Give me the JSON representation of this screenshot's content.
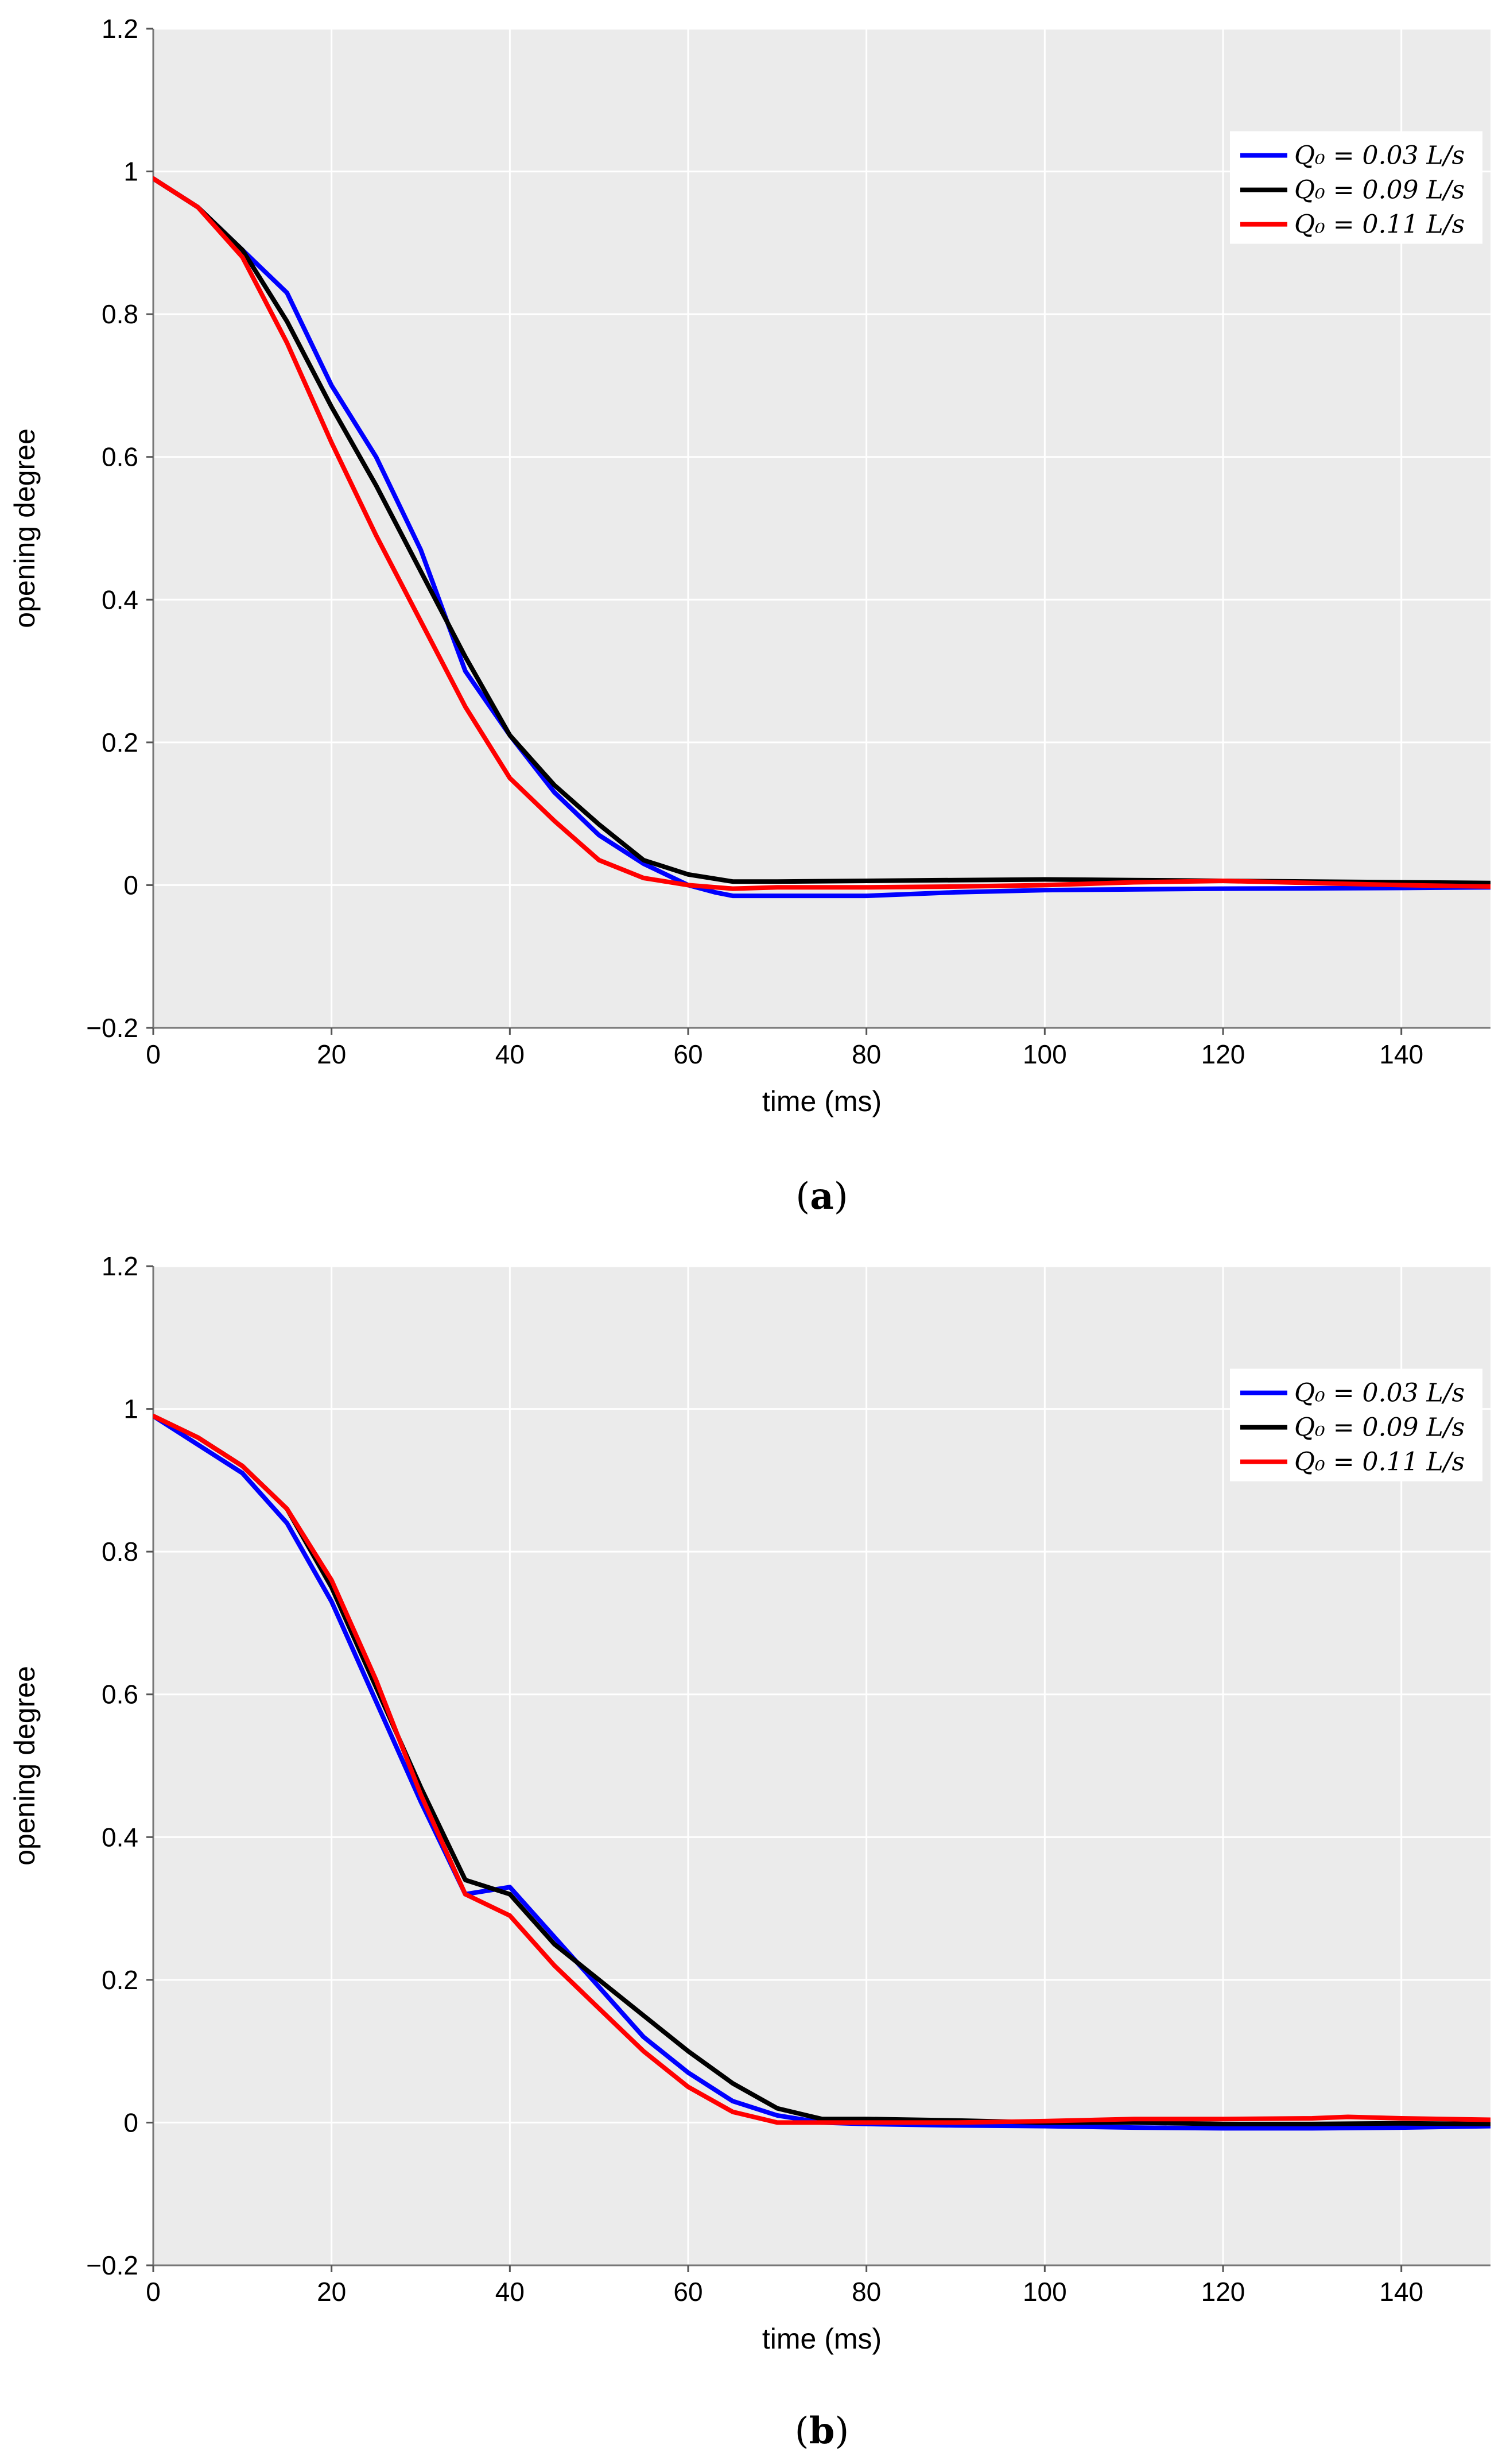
{
  "chart_data": [
    {
      "type": "line",
      "panel_label": "a",
      "title": "",
      "xlabel": "time (ms)",
      "ylabel": "opening degree",
      "xlim": [
        0,
        150
      ],
      "ylim": [
        -0.2,
        1.2
      ],
      "xticks": [
        0,
        20,
        40,
        60,
        80,
        100,
        120,
        140
      ],
      "yticks": [
        -0.2,
        0,
        0.2,
        0.4,
        0.6,
        0.8,
        1,
        1.2
      ],
      "xtick_labels": [
        "0",
        "20",
        "40",
        "60",
        "80",
        "100",
        "120",
        "140"
      ],
      "ytick_labels": [
        "−0.2",
        "0",
        "0.2",
        "0.4",
        "0.6",
        "0.8",
        "1",
        "1.2"
      ],
      "grid": true,
      "legend_position": "top-right",
      "series": [
        {
          "name": "Q0 = 0.03 L/s",
          "legend_label": "Q₀ = 0.03 L/s",
          "color": "#0000ff",
          "x": [
            0,
            5,
            10,
            15,
            20,
            25,
            30,
            35,
            40,
            45,
            50,
            55,
            60,
            63,
            65,
            70,
            80,
            90,
            100,
            120,
            140,
            150
          ],
          "y": [
            0.99,
            0.95,
            0.89,
            0.83,
            0.7,
            0.6,
            0.47,
            0.3,
            0.21,
            0.13,
            0.07,
            0.03,
            0.0,
            -0.01,
            -0.015,
            -0.015,
            -0.015,
            -0.01,
            -0.007,
            -0.005,
            -0.004,
            -0.003
          ]
        },
        {
          "name": "Q0 = 0.09 L/s",
          "legend_label": "Q₀ = 0.09 L/s",
          "color": "#000000",
          "x": [
            0,
            5,
            10,
            15,
            20,
            25,
            30,
            35,
            40,
            45,
            50,
            55,
            60,
            65,
            70,
            80,
            90,
            100,
            110,
            120,
            140,
            150
          ],
          "y": [
            0.99,
            0.95,
            0.89,
            0.79,
            0.67,
            0.56,
            0.44,
            0.32,
            0.21,
            0.14,
            0.085,
            0.035,
            0.015,
            0.005,
            0.005,
            0.006,
            0.007,
            0.008,
            0.007,
            0.006,
            0.004,
            0.003
          ]
        },
        {
          "name": "Q0 = 0.11 L/s",
          "legend_label": "Q₀ = 0.11 L/s",
          "color": "#ff0000",
          "x": [
            0,
            5,
            10,
            15,
            20,
            25,
            30,
            35,
            40,
            45,
            50,
            55,
            60,
            65,
            70,
            80,
            90,
            100,
            110,
            120,
            140,
            150
          ],
          "y": [
            0.99,
            0.95,
            0.88,
            0.76,
            0.62,
            0.49,
            0.37,
            0.25,
            0.15,
            0.09,
            0.035,
            0.01,
            0.0,
            -0.005,
            -0.003,
            -0.003,
            -0.002,
            0.0,
            0.004,
            0.006,
            0.0,
            -0.002
          ]
        }
      ]
    },
    {
      "type": "line",
      "panel_label": "b",
      "title": "",
      "xlabel": "time (ms)",
      "ylabel": "opening degree",
      "xlim": [
        0,
        150
      ],
      "ylim": [
        -0.2,
        1.2
      ],
      "xticks": [
        0,
        20,
        40,
        60,
        80,
        100,
        120,
        140
      ],
      "yticks": [
        -0.2,
        0,
        0.2,
        0.4,
        0.6,
        0.8,
        1,
        1.2
      ],
      "xtick_labels": [
        "0",
        "20",
        "40",
        "60",
        "80",
        "100",
        "120",
        "140"
      ],
      "ytick_labels": [
        "−0.2",
        "0",
        "0.2",
        "0.4",
        "0.6",
        "0.8",
        "1",
        "1.2"
      ],
      "grid": true,
      "legend_position": "top-right",
      "series": [
        {
          "name": "Q0 = 0.03 L/s",
          "legend_label": "Q₀ = 0.03 L/s",
          "color": "#0000ff",
          "x": [
            0,
            5,
            10,
            15,
            20,
            25,
            30,
            35,
            40,
            45,
            50,
            55,
            60,
            65,
            70,
            75,
            80,
            90,
            100,
            110,
            120,
            130,
            140,
            150
          ],
          "y": [
            0.99,
            0.95,
            0.91,
            0.84,
            0.73,
            0.59,
            0.45,
            0.32,
            0.33,
            0.26,
            0.19,
            0.12,
            0.07,
            0.03,
            0.01,
            0.0,
            -0.002,
            -0.004,
            -0.005,
            -0.007,
            -0.008,
            -0.008,
            -0.007,
            -0.005
          ]
        },
        {
          "name": "Q0 = 0.09 L/s",
          "legend_label": "Q₀ = 0.09 L/s",
          "color": "#000000",
          "x": [
            0,
            5,
            10,
            15,
            20,
            25,
            30,
            35,
            40,
            45,
            50,
            55,
            60,
            65,
            70,
            75,
            80,
            90,
            100,
            110,
            120,
            130,
            140,
            150
          ],
          "y": [
            0.99,
            0.96,
            0.92,
            0.86,
            0.75,
            0.61,
            0.47,
            0.34,
            0.32,
            0.25,
            0.2,
            0.15,
            0.1,
            0.055,
            0.02,
            0.005,
            0.005,
            0.003,
            0.0,
            0.0,
            -0.002,
            -0.002,
            -0.001,
            -0.002
          ]
        },
        {
          "name": "Q0 = 0.11 L/s",
          "legend_label": "Q₀ = 0.11 L/s",
          "color": "#ff0000",
          "x": [
            0,
            5,
            10,
            15,
            20,
            25,
            30,
            35,
            40,
            45,
            50,
            55,
            60,
            65,
            70,
            75,
            80,
            90,
            100,
            110,
            120,
            130,
            134,
            140,
            150
          ],
          "y": [
            0.99,
            0.96,
            0.92,
            0.86,
            0.76,
            0.62,
            0.46,
            0.32,
            0.29,
            0.22,
            0.16,
            0.1,
            0.05,
            0.015,
            0.0,
            0.0,
            0.0,
            0.0,
            0.002,
            0.005,
            0.005,
            0.006,
            0.008,
            0.006,
            0.004
          ]
        }
      ]
    }
  ]
}
